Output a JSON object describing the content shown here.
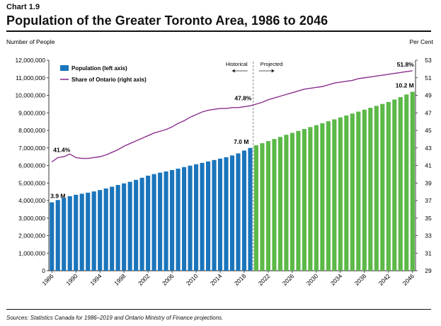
{
  "chart_label": "Chart 1.9",
  "title": "Population of the Greater Toronto Area, 1986 to 2046",
  "source": "Sources: Statistics Canada for 1986–2019 and Ontario Ministry of Finance projections.",
  "colors": {
    "historical_bar": "#1a75bb",
    "projected_bar": "#5cb948",
    "line": "#8a2f8e",
    "divider": "#888888"
  },
  "chart_data": {
    "type": "bar",
    "left_axis_title": "Number of People",
    "right_axis_title": "Per Cent",
    "yleft_lim": [
      0,
      12000000
    ],
    "yleft_ticks": [
      "0",
      "1,000,000",
      "2,000,000",
      "3,000,000",
      "4,000,000",
      "5,000,000",
      "6,000,000",
      "7,000,000",
      "8,000,000",
      "9,000,000",
      "10,000,000",
      "11,000,000",
      "12,000,000"
    ],
    "yright_lim": [
      29,
      53
    ],
    "yright_ticks": [
      "29",
      "31",
      "33",
      "35",
      "37",
      "39",
      "41",
      "43",
      "45",
      "47",
      "49",
      "51",
      "53"
    ],
    "x_tick_labels": [
      "1986",
      "1990",
      "1994",
      "1998",
      "2002",
      "2006",
      "2010",
      "2014",
      "2018",
      "2022",
      "2026",
      "2030",
      "2034",
      "2038",
      "2042",
      "2046"
    ],
    "legend": [
      "Population (left axis)",
      "Share of Ontario (right axis)"
    ],
    "historical_label": "Historical",
    "projected_label": "Projected",
    "annotations": {
      "pop_start": "3.9 M",
      "pop_2019": "7.0 M",
      "pop_end": "10.2 M",
      "share_start": "41.4%",
      "share_2019": "47.8%",
      "share_end": "51.8%"
    },
    "x": [
      1986,
      1987,
      1988,
      1989,
      1990,
      1991,
      1992,
      1993,
      1994,
      1995,
      1996,
      1997,
      1998,
      1999,
      2000,
      2001,
      2002,
      2003,
      2004,
      2005,
      2006,
      2007,
      2008,
      2009,
      2010,
      2011,
      2012,
      2013,
      2014,
      2015,
      2016,
      2017,
      2018,
      2019,
      2020,
      2021,
      2022,
      2023,
      2024,
      2025,
      2026,
      2027,
      2028,
      2029,
      2030,
      2031,
      2032,
      2033,
      2034,
      2035,
      2036,
      2037,
      2038,
      2039,
      2040,
      2041,
      2042,
      2043,
      2044,
      2045,
      2046
    ],
    "series": [
      {
        "name": "Population (left axis)",
        "type": "bar",
        "historical_through": 2019,
        "values": [
          3900000,
          4030000,
          4150000,
          4250000,
          4330000,
          4390000,
          4450000,
          4520000,
          4600000,
          4690000,
          4790000,
          4890000,
          4980000,
          5070000,
          5180000,
          5300000,
          5420000,
          5510000,
          5590000,
          5660000,
          5740000,
          5820000,
          5910000,
          5990000,
          6070000,
          6150000,
          6230000,
          6310000,
          6390000,
          6470000,
          6570000,
          6690000,
          6850000,
          7000000,
          7150000,
          7270000,
          7390000,
          7510000,
          7630000,
          7750000,
          7860000,
          7970000,
          8080000,
          8190000,
          8300000,
          8410000,
          8520000,
          8630000,
          8740000,
          8850000,
          8960000,
          9070000,
          9180000,
          9290000,
          9400000,
          9510000,
          9620000,
          9760000,
          9900000,
          10050000,
          10200000
        ]
      },
      {
        "name": "Share of Ontario (right axis)",
        "type": "line",
        "values": [
          41.4,
          41.9,
          42.0,
          42.3,
          41.9,
          41.8,
          41.8,
          41.9,
          42.0,
          42.2,
          42.5,
          42.8,
          43.2,
          43.5,
          43.8,
          44.1,
          44.4,
          44.7,
          44.9,
          45.1,
          45.4,
          45.8,
          46.1,
          46.5,
          46.8,
          47.1,
          47.3,
          47.4,
          47.5,
          47.5,
          47.6,
          47.6,
          47.7,
          47.8,
          48.0,
          48.2,
          48.5,
          48.7,
          48.9,
          49.1,
          49.3,
          49.5,
          49.7,
          49.8,
          49.9,
          50.0,
          50.2,
          50.4,
          50.5,
          50.6,
          50.7,
          50.9,
          51.0,
          51.1,
          51.2,
          51.3,
          51.4,
          51.5,
          51.6,
          51.7,
          51.8
        ]
      }
    ]
  }
}
